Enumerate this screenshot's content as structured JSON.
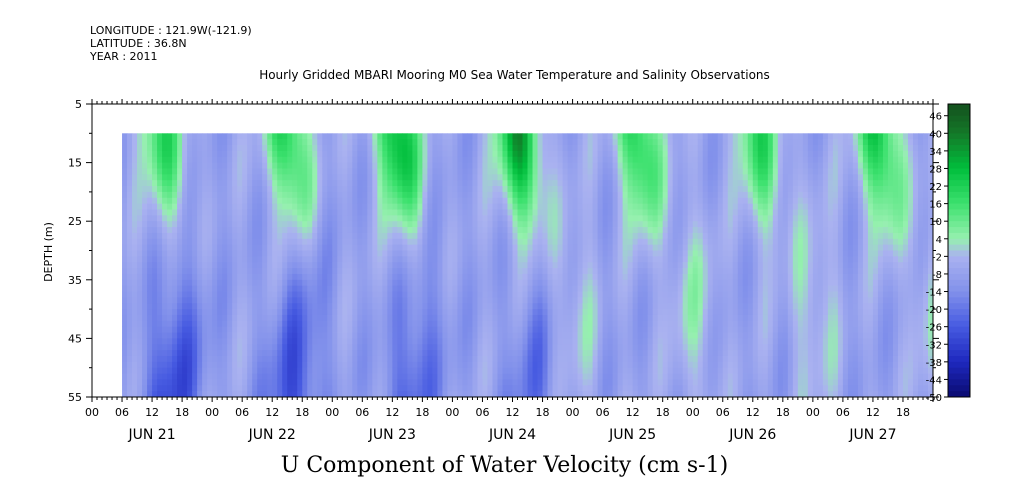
{
  "header": {
    "longitude": "LONGITUDE : 121.9W(-121.9)",
    "latitude": "LATITUDE : 36.8N",
    "year": "YEAR : 2011",
    "title": "Hourly Gridded MBARI Mooring M0 Sea Water Temperature and Salinity Observations"
  },
  "footer": {
    "variable": "U Component of Water Velocity (cm s-1)"
  },
  "chart_data": {
    "type": "heatmap",
    "title": "Hourly Gridded MBARI Mooring M0 Sea Water Temperature and Salinity Observations",
    "xlabel": "",
    "ylabel": "DEPTH (m)",
    "colorbar_label": "U Component of Water Velocity (cm s-1)",
    "x_tick_labels": [
      "00",
      "06",
      "12",
      "18",
      "00",
      "06",
      "12",
      "18",
      "00",
      "06",
      "12",
      "18",
      "00",
      "06",
      "12",
      "18",
      "00",
      "06",
      "12",
      "18",
      "00",
      "06",
      "12",
      "18",
      "00",
      "06",
      "12",
      "18"
    ],
    "date_labels": [
      "JUN 21",
      "JUN 22",
      "JUN 23",
      "JUN 24",
      "JUN 25",
      "JUN 26",
      "JUN 27"
    ],
    "y_ticks": [
      5,
      15,
      25,
      35,
      45,
      55
    ],
    "ylim": [
      55,
      5
    ],
    "data_depth_range": [
      10,
      55
    ],
    "x_range_hours": [
      0,
      168
    ],
    "data_start_hour": 6,
    "colorbar_ticks": [
      46,
      40,
      34,
      28,
      22,
      16,
      10,
      4,
      -2,
      -8,
      -14,
      -20,
      -26,
      -32,
      -38,
      -44,
      -50
    ],
    "color_range": [
      -50,
      50
    ],
    "colors": {
      "strong_positive": "#1b5e20",
      "positive": "#00cc44",
      "weak_positive": "#8ef0a8",
      "weak_negative": "#a0a8ee",
      "negative": "#5a6fe0",
      "strong_negative": "#0a0a70"
    },
    "surface_episodes": [
      {
        "hour": 14,
        "value": 14
      },
      {
        "hour": 39,
        "value": 18
      },
      {
        "hour": 61,
        "value": 24
      },
      {
        "hour": 85,
        "value": 26
      },
      {
        "hour": 109,
        "value": 18
      },
      {
        "hour": 133,
        "value": 14
      },
      {
        "hour": 157,
        "value": 20
      }
    ],
    "deep_negative_episodes": [
      {
        "hour": 16,
        "value": -30
      },
      {
        "hour": 40,
        "value": -28
      },
      {
        "hour": 64,
        "value": -24
      },
      {
        "hour": 88,
        "value": -20
      }
    ]
  }
}
